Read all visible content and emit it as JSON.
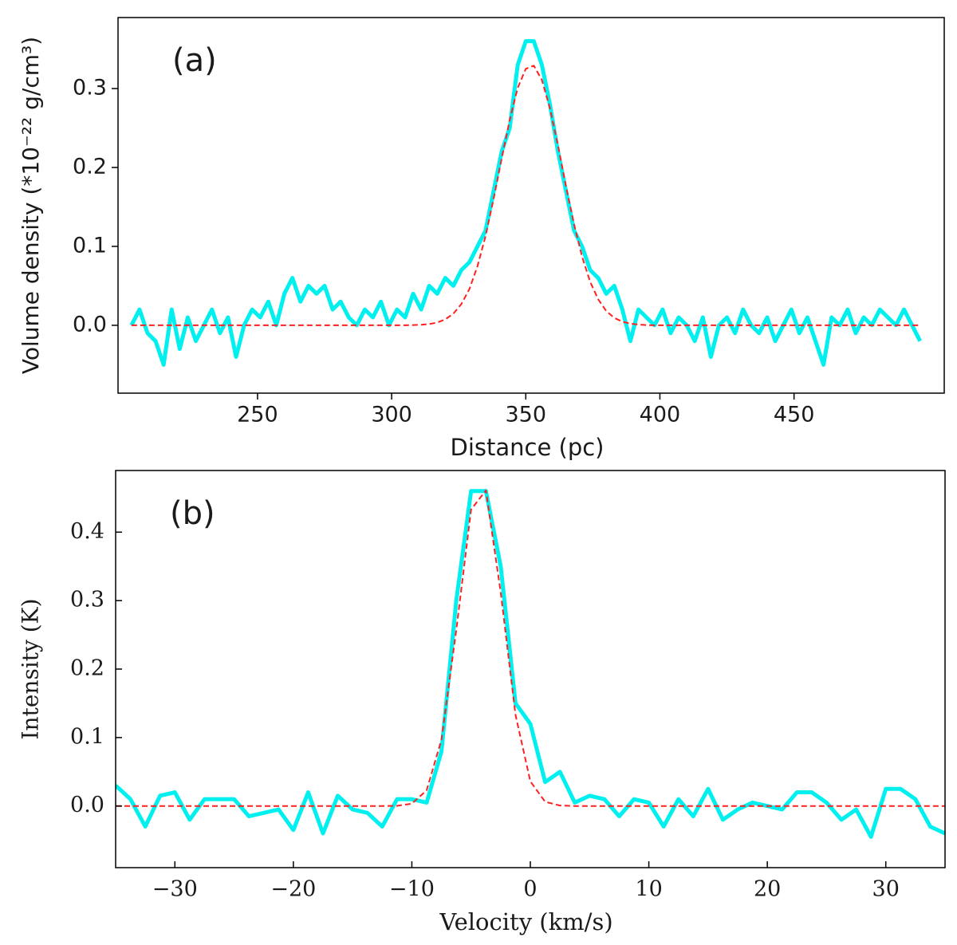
{
  "chart_data": [
    {
      "type": "line",
      "annotation": "(a)",
      "xlabel": "Distance (pc)",
      "ylabel": "Volume density (*10⁻²² g/cm³)",
      "xlim": [
        198,
        506
      ],
      "ylim": [
        -0.086,
        0.39
      ],
      "xticks": [
        250,
        300,
        350,
        400,
        450
      ],
      "yticks": [
        {
          "value": 0,
          "label": "0.0"
        },
        0.1,
        0.2,
        0.3
      ],
      "x": [
        203,
        206,
        209,
        212,
        215,
        218,
        221,
        224,
        227,
        230,
        233,
        236,
        239,
        242,
        245,
        248,
        251,
        254,
        257,
        260,
        263,
        266,
        269,
        272,
        275,
        278,
        281,
        284,
        287,
        290,
        293,
        296,
        299,
        302,
        305,
        308,
        311,
        314,
        317,
        320,
        323,
        326,
        329,
        332,
        335,
        338,
        341,
        344,
        347,
        350,
        353,
        356,
        359,
        362,
        365,
        368,
        371,
        374,
        377,
        380,
        383,
        386,
        389,
        392,
        395,
        398,
        401,
        404,
        407,
        410,
        413,
        416,
        419,
        422,
        425,
        428,
        431,
        434,
        437,
        440,
        443,
        446,
        449,
        452,
        455,
        458,
        461,
        464,
        467,
        470,
        473,
        476,
        479,
        482,
        485,
        488,
        491,
        494,
        497
      ],
      "series": [
        {
          "color": "#00f0f0",
          "linestyle": "solid",
          "values": [
            0.0,
            0.02,
            -0.01,
            -0.02,
            -0.05,
            0.02,
            -0.03,
            0.01,
            -0.02,
            0.0,
            0.02,
            -0.01,
            0.01,
            -0.04,
            0.0,
            0.02,
            0.01,
            0.03,
            0.0,
            0.04,
            0.06,
            0.03,
            0.05,
            0.04,
            0.05,
            0.02,
            0.03,
            0.01,
            0.0,
            0.02,
            0.01,
            0.03,
            0.0,
            0.02,
            0.01,
            0.04,
            0.02,
            0.05,
            0.04,
            0.06,
            0.05,
            0.07,
            0.08,
            0.1,
            0.12,
            0.17,
            0.22,
            0.25,
            0.33,
            0.36,
            0.36,
            0.33,
            0.28,
            0.22,
            0.17,
            0.12,
            0.1,
            0.07,
            0.06,
            0.04,
            0.05,
            0.02,
            -0.02,
            0.02,
            0.01,
            0.0,
            0.02,
            -0.01,
            0.01,
            0.0,
            -0.02,
            0.01,
            -0.04,
            0.0,
            0.01,
            -0.01,
            0.02,
            0.0,
            -0.01,
            0.01,
            -0.02,
            0.0,
            0.02,
            -0.01,
            0.01,
            -0.02,
            -0.05,
            0.01,
            0.0,
            0.02,
            -0.01,
            0.01,
            0.0,
            0.02,
            0.01,
            0.0,
            0.02,
            0.0,
            -0.02
          ]
        },
        {
          "color": "#ff2020",
          "linestyle": "dashed",
          "values": [
            0,
            0,
            0,
            0,
            0,
            0,
            0,
            0,
            0,
            0,
            0,
            0,
            0,
            0,
            0,
            0,
            0,
            0,
            0,
            0,
            0,
            0,
            0,
            0,
            0,
            0,
            0,
            0,
            0,
            0,
            0,
            0,
            0,
            0,
            0,
            0.0003,
            0.0007,
            0.0016,
            0.0035,
            0.0075,
            0.0147,
            0.027,
            0.046,
            0.075,
            0.113,
            0.16,
            0.211,
            0.26,
            0.301,
            0.325,
            0.329,
            0.311,
            0.275,
            0.228,
            0.176,
            0.128,
            0.087,
            0.055,
            0.033,
            0.018,
            0.0094,
            0.0046,
            0.0021,
            0.0009,
            0.0003,
            0,
            0,
            0,
            0,
            0,
            0,
            0,
            0,
            0,
            0,
            0,
            0,
            0,
            0,
            0,
            0,
            0,
            0,
            0,
            0,
            0,
            0,
            0,
            0,
            0,
            0,
            0,
            0,
            0,
            0,
            0,
            0,
            0,
            0
          ]
        }
      ]
    },
    {
      "type": "line",
      "annotation": "(b)",
      "xlabel": "Velocity (km/s)",
      "ylabel": "Intensity (K)",
      "xlim": [
        -35,
        35
      ],
      "ylim": [
        -0.09,
        0.49
      ],
      "xticks": [
        {
          "value": -30,
          "label": "−30"
        },
        {
          "value": -20,
          "label": "−20"
        },
        {
          "value": -10,
          "label": "−10"
        },
        0,
        10,
        20,
        30
      ],
      "yticks": [
        {
          "value": 0,
          "label": "0.0"
        },
        0.1,
        0.2,
        0.3,
        0.4
      ],
      "x": [
        -35,
        -33.75,
        -32.5,
        -31.25,
        -30,
        -28.75,
        -27.5,
        -26.25,
        -25,
        -23.75,
        -22.5,
        -21.25,
        -20,
        -18.75,
        -17.5,
        -16.25,
        -15,
        -13.75,
        -12.5,
        -11.25,
        -10,
        -8.75,
        -7.5,
        -6.25,
        -5,
        -3.75,
        -2.5,
        -1.25,
        0,
        1.25,
        2.5,
        3.75,
        5,
        6.25,
        7.5,
        8.75,
        10,
        11.25,
        12.5,
        13.75,
        15,
        16.25,
        17.5,
        18.75,
        20,
        21.25,
        22.5,
        23.75,
        25,
        26.25,
        27.5,
        28.75,
        30,
        31.25,
        32.5,
        33.75,
        35
      ],
      "series": [
        {
          "color": "#00f0f0",
          "linestyle": "solid",
          "values": [
            0.03,
            0.01,
            -0.03,
            0.015,
            0.02,
            -0.02,
            0.01,
            0.01,
            0.01,
            -0.015,
            -0.01,
            -0.005,
            -0.035,
            0.02,
            -0.04,
            0.015,
            -0.005,
            -0.01,
            -0.03,
            0.01,
            0.01,
            0.005,
            0.08,
            0.3,
            0.46,
            0.46,
            0.35,
            0.15,
            0.12,
            0.035,
            0.05,
            0.005,
            0.015,
            0.01,
            -0.015,
            0.01,
            0.005,
            -0.03,
            0.01,
            -0.015,
            0.025,
            -0.02,
            -0.005,
            0.005,
            0.0,
            -0.005,
            0.02,
            0.02,
            0.005,
            -0.02,
            -0.005,
            -0.045,
            0.025,
            0.025,
            0.01,
            -0.03,
            -0.04
          ]
        },
        {
          "color": "#ff2020",
          "linestyle": "dashed",
          "values": [
            0,
            0,
            0,
            0,
            0,
            0,
            0,
            0,
            0,
            0,
            0,
            0,
            0,
            0,
            0,
            0,
            0,
            0,
            0,
            0.0003,
            0.0035,
            0.023,
            0.097,
            0.257,
            0.433,
            0.461,
            0.312,
            0.133,
            0.036,
            0.0062,
            0.0007,
            0,
            0,
            0,
            0,
            0,
            0,
            0,
            0,
            0,
            0,
            0,
            0,
            0,
            0,
            0,
            0,
            0,
            0,
            0,
            0,
            0,
            0,
            0,
            0,
            0,
            0
          ]
        }
      ]
    }
  ]
}
